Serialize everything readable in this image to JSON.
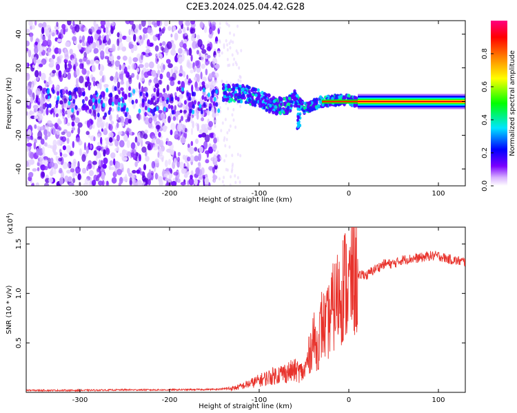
{
  "title": "C2E3.2024.025.04.42.G28",
  "chart_data": [
    {
      "type": "heatmap",
      "title": "C2E3.2024.025.04.42.G28",
      "xlabel": "Height of straight line (km)",
      "ylabel": "Frequency (Hz)",
      "xlim": [
        -360,
        130
      ],
      "ylim": [
        -50,
        48
      ],
      "xticks": [
        -300,
        -200,
        -100,
        0,
        100
      ],
      "xtick_labels": [
        "-300",
        "-200",
        "-100",
        "0",
        "100"
      ],
      "yticks": [
        -40,
        -20,
        0,
        20,
        40
      ],
      "ytick_labels": [
        "-40",
        "-20",
        "0",
        "20",
        "40"
      ],
      "colorbar": {
        "label": "Normalized spectral amplitude",
        "range": [
          0,
          1
        ],
        "ticks": [
          0.0,
          0.2,
          0.4,
          0.6,
          0.8
        ],
        "tick_labels": [
          "0.0",
          "0.2",
          "0.4",
          "0.6",
          "0.8"
        ],
        "colors": [
          "#ffffff",
          "#d9b3ff",
          "#7a00ff",
          "#0000ff",
          "#00e5ff",
          "#00ff00",
          "#ffff00",
          "#ff8000",
          "#ff0000",
          "#ff0080"
        ]
      },
      "noise_region": {
        "x": [
          -360,
          -145
        ],
        "freq": [
          -50,
          48
        ]
      },
      "ridge_points": [
        {
          "x": -140,
          "freq": 5
        },
        {
          "x": -120,
          "freq": 5
        },
        {
          "x": -100,
          "freq": 2
        },
        {
          "x": -85,
          "freq": -2
        },
        {
          "x": -70,
          "freq": -3
        },
        {
          "x": -60,
          "freq": 2
        },
        {
          "x": -50,
          "freq": -4
        },
        {
          "x": -40,
          "freq": -2
        },
        {
          "x": -30,
          "freq": 0
        },
        {
          "x": -10,
          "freq": 1
        },
        {
          "x": 0,
          "freq": 1
        },
        {
          "x": 10,
          "freq": 0
        },
        {
          "x": 130,
          "freq": 0
        }
      ],
      "steady_line": {
        "x_start": 10,
        "x_end": 130,
        "freq": 0
      }
    },
    {
      "type": "line",
      "xlabel": "Height of straight line (km)",
      "ylabel": "SNR (10 * v/v)",
      "y_scale_label": "(x10",
      "y_scale_exponent": "4",
      "y_scale_suffix": ")",
      "xlim": [
        -360,
        130
      ],
      "ylim": [
        0.0,
        1.67
      ],
      "xticks": [
        -300,
        -200,
        -100,
        0,
        100
      ],
      "xtick_labels": [
        "-300",
        "-200",
        "-100",
        "0",
        "100"
      ],
      "yticks": [
        0.5,
        1.0,
        1.5
      ],
      "ytick_labels": [
        "0.5",
        "1.0",
        "1.5"
      ],
      "series": [
        {
          "name": "SNR",
          "color": "#e8322b",
          "x": [
            -360,
            -300,
            -250,
            -200,
            -150,
            -130,
            -120,
            -110,
            -100,
            -90,
            -80,
            -70,
            -60,
            -50,
            -45,
            -40,
            -35,
            -30,
            -25,
            -20,
            -15,
            -10,
            -5,
            0,
            5,
            10,
            15,
            20,
            25,
            30,
            40,
            50,
            60,
            70,
            80,
            90,
            100,
            110,
            120,
            130
          ],
          "y": [
            0.02,
            0.02,
            0.025,
            0.025,
            0.03,
            0.04,
            0.06,
            0.09,
            0.12,
            0.15,
            0.18,
            0.2,
            0.22,
            0.2,
            0.35,
            0.55,
            0.45,
            0.7,
            0.65,
            0.8,
            0.9,
            1.0,
            1.1,
            1.05,
            1.2,
            1.15,
            1.2,
            1.18,
            1.22,
            1.25,
            1.3,
            1.3,
            1.34,
            1.35,
            1.36,
            1.38,
            1.38,
            1.35,
            1.33,
            1.32
          ]
        }
      ]
    }
  ]
}
